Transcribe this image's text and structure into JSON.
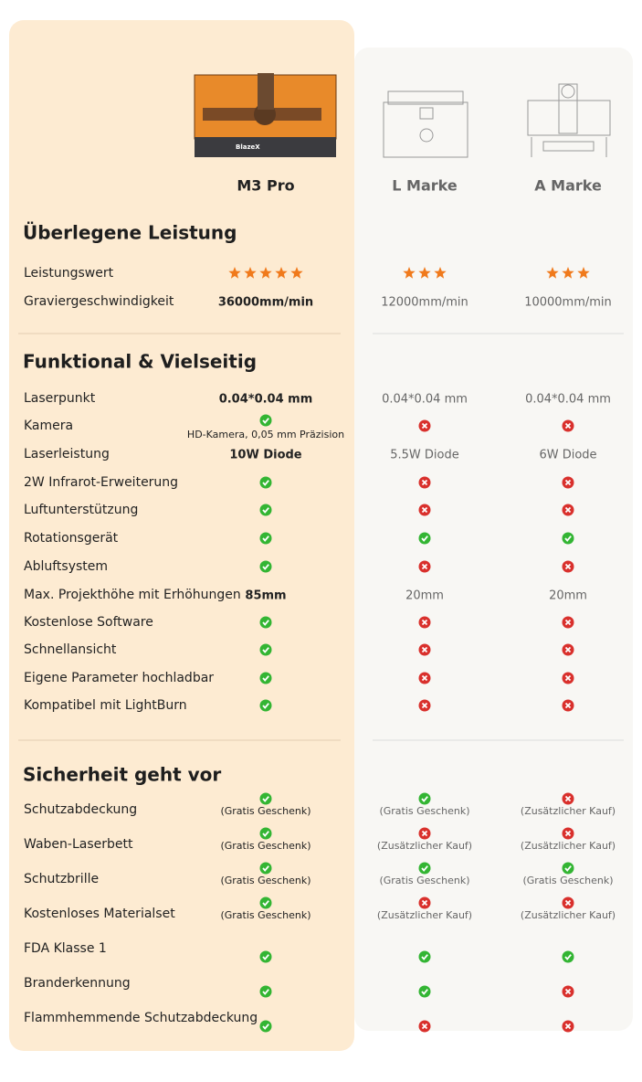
{
  "products": [
    {
      "name": "M3 Pro"
    },
    {
      "name": "L Marke"
    },
    {
      "name": "A Marke"
    }
  ],
  "sections": [
    {
      "title": "Überlegene Leistung",
      "rows": [
        {
          "label": "Leistungswert",
          "cells": [
            {
              "stars": 5
            },
            {
              "stars": 3
            },
            {
              "stars": 3
            }
          ]
        },
        {
          "label": "Graviergeschwindigkeit",
          "cells": [
            {
              "text": "36000mm/min"
            },
            {
              "text": "12000mm/min"
            },
            {
              "text": "10000mm/min"
            }
          ]
        }
      ]
    },
    {
      "title": "Funktional & Vielseitig",
      "rows": [
        {
          "label": "Laserpunkt",
          "cells": [
            {
              "text": "0.04*0.04 mm"
            },
            {
              "text": "0.04*0.04 mm"
            },
            {
              "text": "0.04*0.04 mm"
            }
          ]
        },
        {
          "label": "Kamera",
          "cells": [
            {
              "check": true,
              "note": "HD-Kamera, 0,05 mm Präzision"
            },
            {
              "check": false
            },
            {
              "check": false
            }
          ]
        },
        {
          "label": "Laserleistung",
          "cells": [
            {
              "text": "10W Diode"
            },
            {
              "text": "5.5W Diode"
            },
            {
              "text": "6W Diode"
            }
          ]
        },
        {
          "label": "2W Infrarot-Erweiterung",
          "cells": [
            {
              "check": true
            },
            {
              "check": false
            },
            {
              "check": false
            }
          ]
        },
        {
          "label": "Luftunterstützung",
          "cells": [
            {
              "check": true
            },
            {
              "check": false
            },
            {
              "check": false
            }
          ]
        },
        {
          "label": "Rotationsgerät",
          "cells": [
            {
              "check": true
            },
            {
              "check": true
            },
            {
              "check": true
            }
          ]
        },
        {
          "label": "Abluftsystem",
          "cells": [
            {
              "check": true
            },
            {
              "check": false
            },
            {
              "check": false
            }
          ]
        },
        {
          "label": "Max. Projekthöhe mit Erhöhungen",
          "cells": [
            {
              "text": "85mm"
            },
            {
              "text": "20mm"
            },
            {
              "text": "20mm"
            }
          ]
        },
        {
          "label": "Kostenlose Software",
          "cells": [
            {
              "check": true
            },
            {
              "check": false
            },
            {
              "check": false
            }
          ]
        },
        {
          "label": "Schnellansicht",
          "cells": [
            {
              "check": true
            },
            {
              "check": false
            },
            {
              "check": false
            }
          ]
        },
        {
          "label": "Eigene Parameter hochladbar",
          "cells": [
            {
              "check": true
            },
            {
              "check": false
            },
            {
              "check": false
            }
          ]
        },
        {
          "label": "Kompatibel mit LightBurn",
          "cells": [
            {
              "check": true
            },
            {
              "check": false
            },
            {
              "check": false
            }
          ]
        }
      ]
    },
    {
      "title": "Sicherheit geht vor",
      "rows": [
        {
          "label": "Schutzabdeckung",
          "cells": [
            {
              "check": true,
              "note": "(Gratis Geschenk)"
            },
            {
              "check": true,
              "note": "(Gratis Geschenk)"
            },
            {
              "check": false,
              "note": "(Zusätzlicher Kauf)"
            }
          ]
        },
        {
          "label": "Waben-Laserbett",
          "cells": [
            {
              "check": true,
              "note": "(Gratis Geschenk)"
            },
            {
              "check": false,
              "note": "(Zusätzlicher Kauf)"
            },
            {
              "check": false,
              "note": "(Zusätzlicher Kauf)"
            }
          ]
        },
        {
          "label": "Schutzbrille",
          "cells": [
            {
              "check": true,
              "note": "(Gratis Geschenk)"
            },
            {
              "check": true,
              "note": "(Gratis Geschenk)"
            },
            {
              "check": true,
              "note": "(Gratis Geschenk)"
            }
          ]
        },
        {
          "label": "Kostenloses Materialset",
          "cells": [
            {
              "check": true,
              "note": "(Gratis Geschenk)"
            },
            {
              "check": false,
              "note": "(Zusätzlicher Kauf)"
            },
            {
              "check": false,
              "note": "(Zusätzlicher Kauf)"
            }
          ]
        },
        {
          "label": "FDA Klasse 1",
          "cells": [
            {
              "check": true
            },
            {
              "check": true
            },
            {
              "check": true
            }
          ]
        },
        {
          "label": "Branderkennung",
          "cells": [
            {
              "check": true
            },
            {
              "check": true
            },
            {
              "check": false
            }
          ]
        },
        {
          "label": "Flammhemmende Schutzabdeckung",
          "cells": [
            {
              "check": true
            },
            {
              "check": false
            },
            {
              "check": false
            }
          ]
        }
      ]
    }
  ]
}
